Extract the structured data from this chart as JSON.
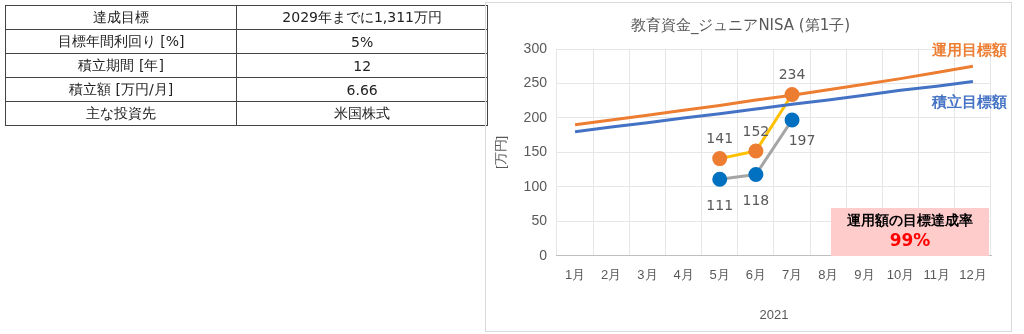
{
  "chart_data": [
    {
      "type": "other",
      "categories": [
        "達成目標",
        "目標年間利回り [%]",
        "積立期間 [年]",
        "積立額 [万円/月]",
        "主な投資先"
      ],
      "value_labels": [
        "2029年までに1,311万円",
        "5%",
        "12",
        "6.66",
        "米国株式"
      ]
    },
    {
      "type": "line",
      "title": "教育資金_ジュニアNISA (第1子)",
      "xlabel": "2021",
      "ylabel": "[万円]",
      "categories": [
        "1月",
        "2月",
        "3月",
        "4月",
        "5月",
        "6月",
        "7月",
        "8月",
        "9月",
        "10月",
        "11月",
        "12月"
      ],
      "ylim": [
        0,
        300
      ],
      "yticks": [
        0,
        50,
        100,
        150,
        200,
        250,
        300
      ],
      "grid": true,
      "legend": false,
      "marker": "circle",
      "series": [
        {
          "name": "運用目標額",
          "color": "#ed7d31",
          "marker": "none",
          "values": [
            190,
            197,
            204,
            211,
            218,
            226,
            233,
            241,
            249,
            257,
            266,
            275
          ]
        },
        {
          "name": "積立目標額",
          "color": "#4472c4",
          "marker": "none",
          "values": [
            180,
            187,
            193,
            200,
            206,
            213,
            220,
            226,
            233,
            240,
            246,
            253
          ]
        },
        {
          "color": "#ffc000",
          "colors": [
            null,
            null,
            null,
            null,
            "#ed7d31",
            "#ed7d31",
            "#ed7d31",
            null,
            null,
            null,
            null,
            null
          ],
          "values": [
            null,
            null,
            null,
            null,
            141,
            152,
            234,
            null,
            null,
            null,
            null,
            null
          ],
          "value_labels": [
            null,
            null,
            null,
            null,
            "141",
            "152",
            "234",
            null,
            null,
            null,
            null,
            null
          ]
        },
        {
          "color": "#a5a5a5",
          "colors": [
            null,
            null,
            null,
            null,
            "#0070c0",
            "#0070c0",
            "#0070c0",
            null,
            null,
            null,
            null,
            null
          ],
          "values": [
            null,
            null,
            null,
            null,
            111,
            118,
            197,
            null,
            null,
            null,
            null,
            null
          ],
          "value_labels": [
            null,
            null,
            null,
            null,
            "111",
            "118",
            "197",
            null,
            null,
            null,
            null,
            null
          ]
        }
      ],
      "annotations": [
        "運用額の目標達成率",
        "99%"
      ]
    }
  ]
}
